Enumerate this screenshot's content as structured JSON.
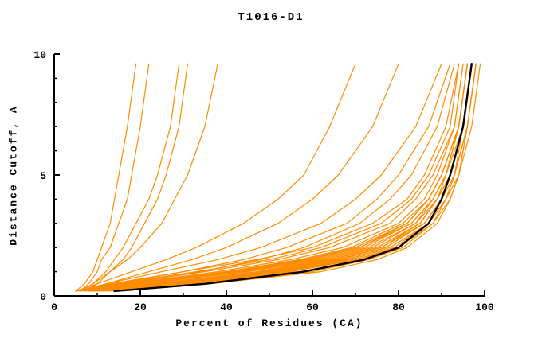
{
  "chart_data": {
    "type": "line",
    "title": "T1016-D1",
    "xlabel": "Percent of Residues (CA)",
    "ylabel": "Distance Cutoff, A",
    "xlim": [
      0,
      100
    ],
    "ylim": [
      0,
      10
    ],
    "x_ticks": [
      0,
      20,
      40,
      60,
      80,
      100
    ],
    "x_minor_ticks": [
      10,
      30,
      50,
      70,
      90
    ],
    "y_ticks": [
      0,
      5,
      10
    ],
    "y_minor_ticks": [
      1,
      2,
      3,
      4,
      6,
      7,
      8,
      9
    ],
    "grid": false,
    "legend": "none",
    "line_color": "#ff8c00",
    "highlight_color": "#000000",
    "y_knots": [
      0.2,
      0.5,
      1.0,
      1.5,
      2.0,
      3.0,
      4.0,
      5.0,
      7.0,
      9.6
    ],
    "series": [
      {
        "name": "curve-01",
        "x": [
          6,
          18,
          40,
          58,
          70,
          82,
          87,
          90,
          94,
          96
        ]
      },
      {
        "name": "curve-02",
        "x": [
          8,
          25,
          50,
          66,
          76,
          85,
          89,
          92,
          95,
          97
        ]
      },
      {
        "name": "curve-03",
        "x": [
          5,
          15,
          35,
          52,
          64,
          78,
          84,
          88,
          93,
          95
        ]
      },
      {
        "name": "curve-04",
        "x": [
          10,
          30,
          55,
          70,
          79,
          87,
          91,
          93,
          96,
          98
        ]
      },
      {
        "name": "curve-05",
        "x": [
          7,
          20,
          45,
          62,
          73,
          84,
          88,
          91,
          94,
          96
        ]
      },
      {
        "name": "curve-06",
        "x": [
          9,
          28,
          52,
          68,
          77,
          86,
          90,
          92,
          95,
          97
        ]
      },
      {
        "name": "curve-07",
        "x": [
          6,
          16,
          38,
          55,
          67,
          80,
          86,
          89,
          93,
          95
        ]
      },
      {
        "name": "curve-08",
        "x": [
          8,
          22,
          48,
          64,
          75,
          85,
          89,
          92,
          95,
          97
        ]
      },
      {
        "name": "curve-09",
        "x": [
          11,
          32,
          58,
          72,
          80,
          88,
          91,
          94,
          96,
          98
        ]
      },
      {
        "name": "curve-10",
        "x": [
          5,
          14,
          33,
          50,
          62,
          76,
          83,
          87,
          92,
          94
        ]
      },
      {
        "name": "curve-11",
        "x": [
          7,
          19,
          43,
          60,
          71,
          83,
          88,
          91,
          94,
          96
        ]
      },
      {
        "name": "curve-12",
        "x": [
          9,
          26,
          51,
          67,
          76,
          86,
          90,
          92,
          95,
          97
        ]
      },
      {
        "name": "curve-13",
        "x": [
          6,
          17,
          40,
          57,
          69,
          81,
          87,
          90,
          94,
          96
        ]
      },
      {
        "name": "curve-14",
        "x": [
          10,
          29,
          54,
          69,
          78,
          87,
          90,
          93,
          96,
          98
        ]
      },
      {
        "name": "curve-15",
        "x": [
          8,
          23,
          47,
          63,
          74,
          84,
          89,
          91,
          95,
          97
        ]
      },
      {
        "name": "curve-16",
        "x": [
          12,
          34,
          60,
          73,
          81,
          88,
          92,
          94,
          96,
          98
        ]
      },
      {
        "name": "curve-17",
        "x": [
          5,
          13,
          30,
          47,
          60,
          74,
          82,
          86,
          91,
          94
        ]
      },
      {
        "name": "curve-18",
        "x": [
          7,
          21,
          44,
          61,
          72,
          83,
          88,
          91,
          94,
          96
        ]
      },
      {
        "name": "curve-19",
        "x": [
          9,
          27,
          53,
          68,
          77,
          86,
          90,
          93,
          95,
          97
        ]
      },
      {
        "name": "curve-20",
        "x": [
          6,
          18,
          41,
          58,
          70,
          82,
          87,
          90,
          94,
          96
        ]
      },
      {
        "name": "curve-21",
        "x": [
          8,
          24,
          49,
          65,
          75,
          85,
          89,
          92,
          95,
          97
        ]
      },
      {
        "name": "curve-22",
        "x": [
          11,
          31,
          57,
          71,
          79,
          87,
          91,
          93,
          96,
          98
        ]
      },
      {
        "name": "curve-23",
        "x": [
          7,
          20,
          42,
          59,
          71,
          82,
          87,
          90,
          94,
          96
        ]
      },
      {
        "name": "curve-24",
        "x": [
          9,
          25,
          50,
          66,
          76,
          85,
          89,
          92,
          95,
          97
        ]
      },
      {
        "name": "curve-25",
        "x": [
          13,
          36,
          62,
          75,
          82,
          89,
          92,
          94,
          97,
          99
        ]
      },
      {
        "name": "curve-26",
        "x": [
          5,
          12,
          25,
          38,
          48,
          62,
          70,
          76,
          84,
          90
        ]
      },
      {
        "name": "curve-27",
        "x": [
          6,
          14,
          30,
          44,
          54,
          68,
          75,
          80,
          87,
          92
        ]
      },
      {
        "name": "curve-28",
        "x": [
          7,
          16,
          34,
          48,
          58,
          71,
          78,
          83,
          89,
          93
        ]
      },
      {
        "name": "curve-29",
        "x": [
          6,
          12,
          22,
          32,
          40,
          52,
          60,
          66,
          74,
          80
        ]
      },
      {
        "name": "curve-30",
        "x": [
          5,
          10,
          18,
          26,
          33,
          44,
          52,
          58,
          64,
          70
        ]
      },
      {
        "name": "curve-31",
        "x": [
          5,
          7,
          9,
          10,
          11,
          13,
          14,
          15,
          17,
          19
        ]
      },
      {
        "name": "curve-32",
        "x": [
          6,
          8,
          10,
          11,
          13,
          15,
          17,
          18,
          20,
          22
        ]
      },
      {
        "name": "curve-33",
        "x": [
          6,
          9,
          12,
          14,
          16,
          19,
          22,
          24,
          27,
          29
        ]
      },
      {
        "name": "curve-34",
        "x": [
          7,
          10,
          13,
          16,
          18,
          21,
          24,
          26,
          29,
          31
        ]
      },
      {
        "name": "curve-35",
        "x": [
          6,
          9,
          13,
          17,
          20,
          25,
          28,
          31,
          35,
          38
        ]
      },
      {
        "name": "highlighted-curve",
        "highlight": true,
        "x": [
          14,
          35,
          58,
          72,
          80,
          87,
          90,
          92,
          95,
          97
        ]
      }
    ]
  }
}
